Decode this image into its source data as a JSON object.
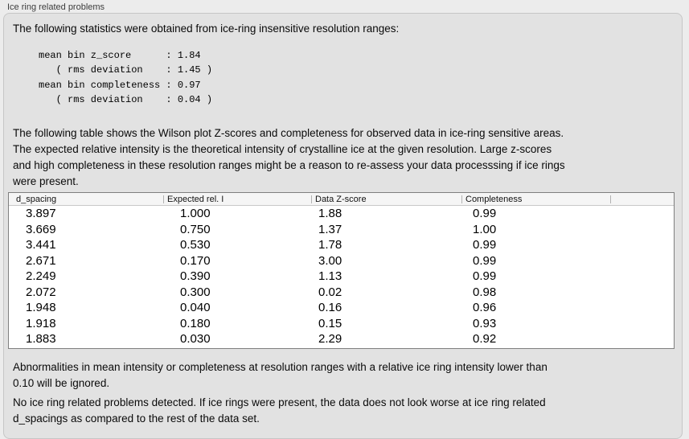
{
  "panel": {
    "title": "Ice ring related problems"
  },
  "intro_text": "The following statistics were obtained from ice-ring insensitive resolution ranges:",
  "stats_block": "mean bin z_score      : 1.84\n   ( rms deviation    : 1.45 )\nmean bin completeness : 0.97\n   ( rms deviation    : 0.04 )",
  "stats": {
    "mean_bin_z_score": "1.84",
    "z_score_rms_deviation": "1.45",
    "mean_bin_completeness": "0.97",
    "completeness_rms_deviation": "0.04"
  },
  "description_text": "The following table shows the Wilson plot Z-scores and completeness for observed data in ice-ring sensitive areas.\nThe expected relative intensity is the theoretical intensity of crystalline ice at the given resolution. Large z-scores\nand high completeness in these resolution ranges might be a reason to re-assess your data processsing if ice rings\nwere present.",
  "table": {
    "columns": [
      "d_spacing",
      "Expected rel. I",
      "Data Z-score",
      "Completeness"
    ],
    "rows": [
      [
        "3.897",
        "1.000",
        "1.88",
        "0.99"
      ],
      [
        "3.669",
        "0.750",
        "1.37",
        "1.00"
      ],
      [
        "3.441",
        "0.530",
        "1.78",
        "0.99"
      ],
      [
        "2.671",
        "0.170",
        "3.00",
        "0.99"
      ],
      [
        "2.249",
        "0.390",
        "1.13",
        "0.99"
      ],
      [
        "2.072",
        "0.300",
        "0.02",
        "0.98"
      ],
      [
        "1.948",
        "0.040",
        "0.16",
        "0.96"
      ],
      [
        "1.918",
        "0.180",
        "0.15",
        "0.93"
      ],
      [
        "1.883",
        "0.030",
        "2.29",
        "0.92"
      ]
    ]
  },
  "ignore_note_text": "Abnormalities in mean intensity or completeness at resolution ranges with a relative ice ring intensity lower than\n0.10 will be ignored.",
  "conclusion_text": "No ice ring related problems detected. If ice rings were present, the data does not look worse at ice ring related\nd_spacings as compared to the rest of the data set.",
  "colors": {
    "page_bg": "#ececec",
    "panel_bg": "#e2e2e2",
    "table_border": "#7f7f7f",
    "header_bg": "#f5f5f5"
  }
}
